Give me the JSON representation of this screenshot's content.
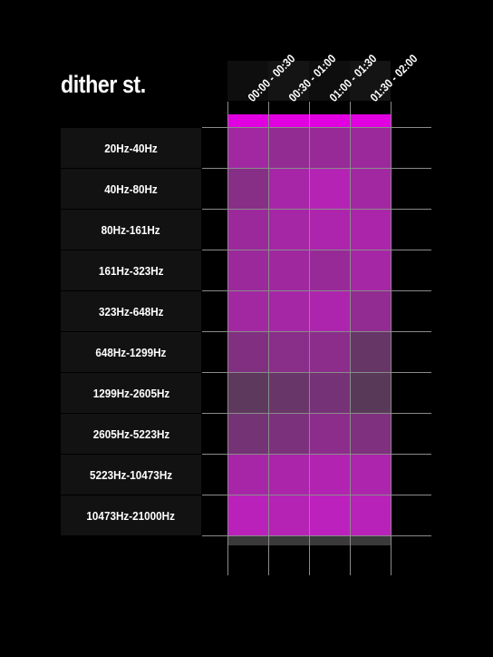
{
  "page": {
    "title": "dither st."
  },
  "colors": {
    "background": "#000000",
    "top_bar": "#e000e0",
    "bottom_bar": "#3a3a3a",
    "label_bg": "#121212",
    "grid": "#8a8a8a"
  },
  "chart_data": {
    "type": "heatmap",
    "title": "dither st.",
    "columns": [
      "00:00 - 00:30",
      "00:30 - 01:00",
      "01:00 - 01:30",
      "01:30 - 02:00"
    ],
    "rows": [
      "20Hz-40Hz",
      "40Hz-80Hz",
      "80Hz-161Hz",
      "161Hz-323Hz",
      "323Hz-648Hz",
      "648Hz-1299Hz",
      "1299Hz-2605Hz",
      "2605Hz-5223Hz",
      "5223Hz-10473Hz",
      "10473Hz-21000Hz"
    ],
    "values": [
      [
        0.72,
        0.6,
        0.64,
        0.68
      ],
      [
        0.52,
        0.76,
        0.86,
        0.72
      ],
      [
        0.68,
        0.74,
        0.8,
        0.78
      ],
      [
        0.68,
        0.7,
        0.64,
        0.74
      ],
      [
        0.72,
        0.74,
        0.8,
        0.6
      ],
      [
        0.48,
        0.54,
        0.56,
        0.28
      ],
      [
        0.22,
        0.3,
        0.4,
        0.18
      ],
      [
        0.38,
        0.44,
        0.56,
        0.46
      ],
      [
        0.76,
        0.78,
        0.84,
        0.8
      ],
      [
        0.9,
        0.86,
        0.92,
        0.88
      ]
    ],
    "value_range": [
      0,
      1
    ],
    "color_low": "#404040",
    "color_high": "#c81ec8",
    "grid": true,
    "legend": "none"
  }
}
